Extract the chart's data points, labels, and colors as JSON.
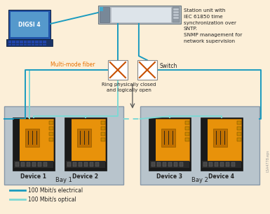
{
  "bg_color": "#fcefd8",
  "legend": [
    {
      "label": "100 Mbit/s electrical",
      "color": "#1a9bbf"
    },
    {
      "label": "100 Mbit/s optical",
      "color": "#7dd8d4"
    }
  ],
  "annotation_right": "Station unit with\nIEC 61850 time\nsynchronization over\nSNTP.\nSNMP management for\nnetwork supervision",
  "annotation_switch": "Switch",
  "annotation_fiber": "Multi-mode fiber",
  "annotation_ring": "Ring physically closed\nand logically open",
  "bay1_label": "Bay 1",
  "bay2_label": "Bay 2",
  "device_labels": [
    "Device 1",
    "Device 2",
    "Device 3",
    "Device 4"
  ],
  "watermark": "LSA4778.eps",
  "digsi_label": "DIGSI 4"
}
